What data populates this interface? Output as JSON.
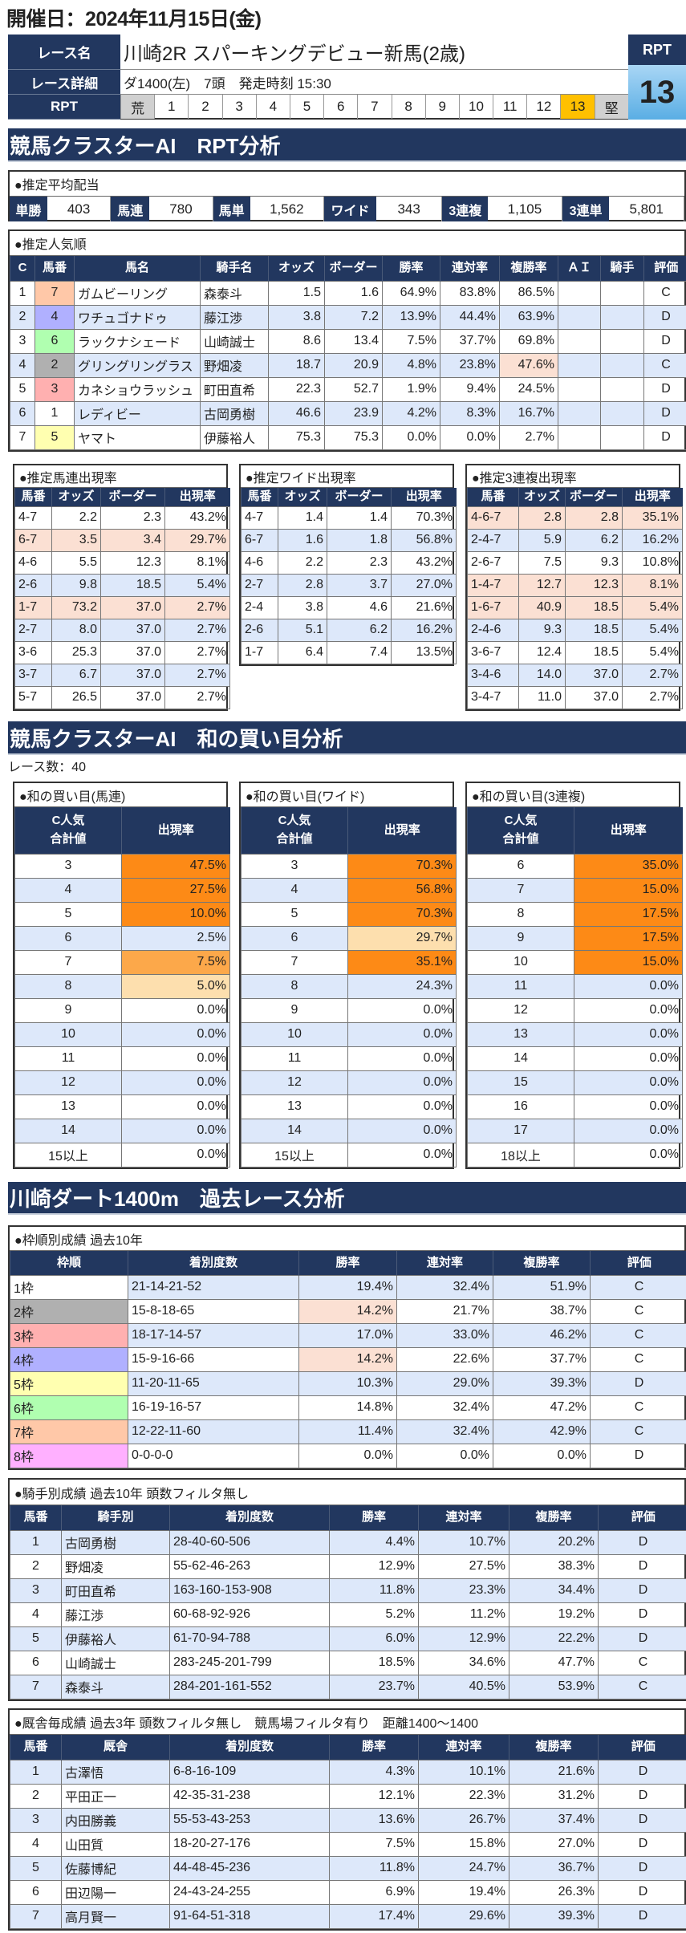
{
  "header": {
    "date": "開催日：2024年11月15日(金)"
  },
  "race": {
    "name_label": "レース名",
    "name": "川崎2R スパーキングデビュー新馬(2歳)",
    "detail_label": "レース詳細",
    "detail": "ダ1400(左)　7頭　発走時刻 15:30",
    "rpt_label": "RPT",
    "scale": [
      "荒",
      "1",
      "2",
      "3",
      "4",
      "5",
      "6",
      "7",
      "8",
      "9",
      "10",
      "11",
      "12",
      "13",
      "堅"
    ],
    "rpt_title": "RPT",
    "rpt_value": "13",
    "selected_index": 13
  },
  "sections": {
    "rpt": "競馬クラスターAI　RPT分析",
    "wa": "競馬クラスターAI　和の買い目分析",
    "past": "川崎ダート1400m　過去レース分析"
  },
  "colors": {
    "navy": "#22375f",
    "selected": "#ffc000",
    "frame": {
      "1": "#ffffff",
      "2": "#b0b0b0",
      "3": "#ffb0b0",
      "4": "#b0b0ff",
      "5": "#ffffb0",
      "6": "#b0ffb0",
      "7": "#ffc8a8",
      "8": "#ffb0ff"
    }
  },
  "payout": {
    "title": "●推定平均配当",
    "items": [
      {
        "label": "単勝",
        "value": "403"
      },
      {
        "label": "馬連",
        "value": "780"
      },
      {
        "label": "馬単",
        "value": "1,562"
      },
      {
        "label": "ワイド",
        "value": "343"
      },
      {
        "label": "3連複",
        "value": "1,105"
      },
      {
        "label": "3連単",
        "value": "5,801"
      }
    ]
  },
  "popularity": {
    "title": "●推定人気順",
    "columns": [
      "C",
      "馬番",
      "馬名",
      "騎手名",
      "オッズ",
      "ボーダー",
      "勝率",
      "連対率",
      "複勝率",
      "ＡＩ",
      "騎手",
      "評価"
    ],
    "rows": [
      [
        "1",
        "7",
        "ガムビーリング",
        "森泰斗",
        "1.5",
        "1.6",
        "64.9%",
        "83.8%",
        "86.5%",
        "",
        "",
        "C"
      ],
      [
        "2",
        "4",
        "ワチュゴナドゥ",
        "藤江渉",
        "3.8",
        "7.2",
        "13.9%",
        "44.4%",
        "63.9%",
        "",
        "",
        "D"
      ],
      [
        "3",
        "6",
        "ラックナシェード",
        "山崎誠士",
        "8.6",
        "13.4",
        "7.5%",
        "37.7%",
        "69.8%",
        "",
        "",
        "D"
      ],
      [
        "4",
        "2",
        "グリングリングラス",
        "野畑凌",
        "18.7",
        "20.9",
        "4.8%",
        "23.8%",
        "47.6%",
        "",
        "",
        "C"
      ],
      [
        "5",
        "3",
        "カネショウラッシュ",
        "町田直希",
        "22.3",
        "52.7",
        "1.9%",
        "9.4%",
        "24.5%",
        "",
        "",
        "D"
      ],
      [
        "6",
        "1",
        "レディビー",
        "古岡勇樹",
        "46.6",
        "23.9",
        "4.2%",
        "8.3%",
        "16.7%",
        "",
        "",
        "D"
      ],
      [
        "7",
        "5",
        "ヤマト",
        "伊藤裕人",
        "75.3",
        "75.3",
        "0.0%",
        "0.0%",
        "2.7%",
        "",
        "",
        "D"
      ]
    ],
    "highlight_cells": [
      [
        3,
        8
      ]
    ]
  },
  "umaren": {
    "title": "●推定馬連出現率",
    "columns": [
      "馬番",
      "オッズ",
      "ボーダー",
      "出現率"
    ],
    "rows": [
      [
        "4-7",
        "2.2",
        "2.3",
        "43.2%"
      ],
      [
        "6-7",
        "3.5",
        "3.4",
        "29.7%"
      ],
      [
        "4-6",
        "5.5",
        "12.3",
        "8.1%"
      ],
      [
        "2-6",
        "9.8",
        "18.5",
        "5.4%"
      ],
      [
        "1-7",
        "73.2",
        "37.0",
        "2.7%"
      ],
      [
        "2-7",
        "8.0",
        "37.0",
        "2.7%"
      ],
      [
        "3-6",
        "25.3",
        "37.0",
        "2.7%"
      ],
      [
        "3-7",
        "6.7",
        "37.0",
        "2.7%"
      ],
      [
        "5-7",
        "26.5",
        "37.0",
        "2.7%"
      ]
    ],
    "highlight_rows": [
      1,
      4
    ]
  },
  "wide": {
    "title": "●推定ワイド出現率",
    "columns": [
      "馬番",
      "オッズ",
      "ボーダー",
      "出現率"
    ],
    "rows": [
      [
        "4-7",
        "1.4",
        "1.4",
        "70.3%"
      ],
      [
        "6-7",
        "1.6",
        "1.8",
        "56.8%"
      ],
      [
        "4-6",
        "2.2",
        "2.3",
        "43.2%"
      ],
      [
        "2-7",
        "2.8",
        "3.7",
        "27.0%"
      ],
      [
        "2-4",
        "3.8",
        "4.6",
        "21.6%"
      ],
      [
        "2-6",
        "5.1",
        "6.2",
        "16.2%"
      ],
      [
        "1-7",
        "6.4",
        "7.4",
        "13.5%"
      ]
    ],
    "highlight_rows": []
  },
  "sanrenpuku": {
    "title": "●推定3連複出現率",
    "columns": [
      "馬番",
      "オッズ",
      "ボーダー",
      "出現率"
    ],
    "rows": [
      [
        "4-6-7",
        "2.8",
        "2.8",
        "35.1%"
      ],
      [
        "2-4-7",
        "5.9",
        "6.2",
        "16.2%"
      ],
      [
        "2-6-7",
        "7.5",
        "9.3",
        "10.8%"
      ],
      [
        "1-4-7",
        "12.7",
        "12.3",
        "8.1%"
      ],
      [
        "1-6-7",
        "40.9",
        "18.5",
        "5.4%"
      ],
      [
        "2-4-6",
        "9.3",
        "18.5",
        "5.4%"
      ],
      [
        "3-6-7",
        "12.4",
        "18.5",
        "5.4%"
      ],
      [
        "3-4-6",
        "14.0",
        "37.0",
        "2.7%"
      ],
      [
        "3-4-7",
        "11.0",
        "37.0",
        "2.7%"
      ]
    ],
    "highlight_rows": [
      0,
      3,
      4
    ]
  },
  "race_count": "レース数：40",
  "wa_umaren": {
    "title": "●和の買い目(馬連)",
    "columns": [
      "C人気\n合計値",
      "出現率"
    ],
    "rows": [
      [
        "3",
        "47.5%"
      ],
      [
        "4",
        "27.5%"
      ],
      [
        "5",
        "10.0%"
      ],
      [
        "6",
        "2.5%"
      ],
      [
        "7",
        "7.5%"
      ],
      [
        "8",
        "5.0%"
      ],
      [
        "9",
        "0.0%"
      ],
      [
        "10",
        "0.0%"
      ],
      [
        "11",
        "0.0%"
      ],
      [
        "12",
        "0.0%"
      ],
      [
        "13",
        "0.0%"
      ],
      [
        "14",
        "0.0%"
      ],
      [
        "15以上",
        "0.0%"
      ]
    ],
    "levels": [
      "o",
      "o",
      "o",
      "",
      "m",
      "lt",
      "",
      "",
      "",
      "",
      "",
      "",
      ""
    ]
  },
  "wa_wide": {
    "title": "●和の買い目(ワイド)",
    "columns": [
      "C人気\n合計値",
      "出現率"
    ],
    "rows": [
      [
        "3",
        "70.3%"
      ],
      [
        "4",
        "56.8%"
      ],
      [
        "5",
        "70.3%"
      ],
      [
        "6",
        "29.7%"
      ],
      [
        "7",
        "35.1%"
      ],
      [
        "8",
        "24.3%"
      ],
      [
        "9",
        "0.0%"
      ],
      [
        "10",
        "0.0%"
      ],
      [
        "11",
        "0.0%"
      ],
      [
        "12",
        "0.0%"
      ],
      [
        "13",
        "0.0%"
      ],
      [
        "14",
        "0.0%"
      ],
      [
        "15以上",
        "0.0%"
      ]
    ],
    "levels": [
      "o",
      "o",
      "o",
      "lt",
      "o",
      "",
      "",
      "",
      "",
      "",
      "",
      "",
      ""
    ]
  },
  "wa_sanrenpuku": {
    "title": "●和の買い目(3連複)",
    "columns": [
      "C人気\n合計値",
      "出現率"
    ],
    "rows": [
      [
        "6",
        "35.0%"
      ],
      [
        "7",
        "15.0%"
      ],
      [
        "8",
        "17.5%"
      ],
      [
        "9",
        "17.5%"
      ],
      [
        "10",
        "15.0%"
      ],
      [
        "11",
        "0.0%"
      ],
      [
        "12",
        "0.0%"
      ],
      [
        "13",
        "0.0%"
      ],
      [
        "14",
        "0.0%"
      ],
      [
        "15",
        "0.0%"
      ],
      [
        "16",
        "0.0%"
      ],
      [
        "17",
        "0.0%"
      ],
      [
        "18以上",
        "0.0%"
      ]
    ],
    "levels": [
      "o",
      "o",
      "o",
      "o",
      "o",
      "",
      "",
      "",
      "",
      "",
      "",
      "",
      ""
    ]
  },
  "waku": {
    "title": "●枠順別成績 過去10年",
    "columns": [
      "枠順",
      "着別度数",
      "勝率",
      "連対率",
      "複勝率",
      "評価"
    ],
    "rows": [
      [
        "1枠",
        "21-14-21-52",
        "19.4%",
        "32.4%",
        "51.9%",
        "C"
      ],
      [
        "2枠",
        "15-8-18-65",
        "14.2%",
        "21.7%",
        "38.7%",
        "C"
      ],
      [
        "3枠",
        "18-17-14-57",
        "17.0%",
        "33.0%",
        "46.2%",
        "C"
      ],
      [
        "4枠",
        "15-9-16-66",
        "14.2%",
        "22.6%",
        "37.7%",
        "C"
      ],
      [
        "5枠",
        "11-20-11-65",
        "10.3%",
        "29.0%",
        "39.3%",
        "D"
      ],
      [
        "6枠",
        "16-19-16-57",
        "14.8%",
        "32.4%",
        "47.2%",
        "C"
      ],
      [
        "7枠",
        "12-22-11-60",
        "11.4%",
        "32.4%",
        "42.9%",
        "C"
      ],
      [
        "8枠",
        "0-0-0-0",
        "0.0%",
        "0.0%",
        "0.0%",
        "D"
      ]
    ],
    "highlight_cells": [
      [
        1,
        2
      ],
      [
        3,
        2
      ]
    ]
  },
  "jockey": {
    "title": "●騎手別成績 過去10年 頭数フィルタ無し",
    "columns": [
      "馬番",
      "騎手別",
      "着別度数",
      "勝率",
      "連対率",
      "複勝率",
      "評価"
    ],
    "rows": [
      [
        "1",
        "古岡勇樹",
        "28-40-60-506",
        "4.4%",
        "10.7%",
        "20.2%",
        "D"
      ],
      [
        "2",
        "野畑凌",
        "55-62-46-263",
        "12.9%",
        "27.5%",
        "38.3%",
        "D"
      ],
      [
        "3",
        "町田直希",
        "163-160-153-908",
        "11.8%",
        "23.3%",
        "34.4%",
        "D"
      ],
      [
        "4",
        "藤江渉",
        "60-68-92-926",
        "5.2%",
        "11.2%",
        "19.2%",
        "D"
      ],
      [
        "5",
        "伊藤裕人",
        "61-70-94-788",
        "6.0%",
        "12.9%",
        "22.2%",
        "D"
      ],
      [
        "6",
        "山崎誠士",
        "283-245-201-799",
        "18.5%",
        "34.6%",
        "47.7%",
        "C"
      ],
      [
        "7",
        "森泰斗",
        "284-201-161-552",
        "23.7%",
        "40.5%",
        "53.9%",
        "C"
      ]
    ]
  },
  "trainer": {
    "title": "●厩舎毎成績 過去3年 頭数フィルタ無し　競馬場フィルタ有り　距離1400～1400",
    "columns": [
      "馬番",
      "厩舎",
      "着別度数",
      "勝率",
      "連対率",
      "複勝率",
      "評価"
    ],
    "rows": [
      [
        "1",
        "古澤悟",
        "6-8-16-109",
        "4.3%",
        "10.1%",
        "21.6%",
        "D"
      ],
      [
        "2",
        "平田正一",
        "42-35-31-238",
        "12.1%",
        "22.3%",
        "31.2%",
        "D"
      ],
      [
        "3",
        "内田勝義",
        "55-53-43-253",
        "13.6%",
        "26.7%",
        "37.4%",
        "D"
      ],
      [
        "4",
        "山田質",
        "18-20-27-176",
        "7.5%",
        "15.8%",
        "27.0%",
        "D"
      ],
      [
        "5",
        "佐藤博紀",
        "44-48-45-236",
        "11.8%",
        "24.7%",
        "36.7%",
        "D"
      ],
      [
        "6",
        "田辺陽一",
        "24-43-24-255",
        "6.9%",
        "19.4%",
        "26.3%",
        "D"
      ],
      [
        "7",
        "高月賢一",
        "91-64-51-318",
        "17.4%",
        "29.6%",
        "39.3%",
        "D"
      ]
    ]
  }
}
